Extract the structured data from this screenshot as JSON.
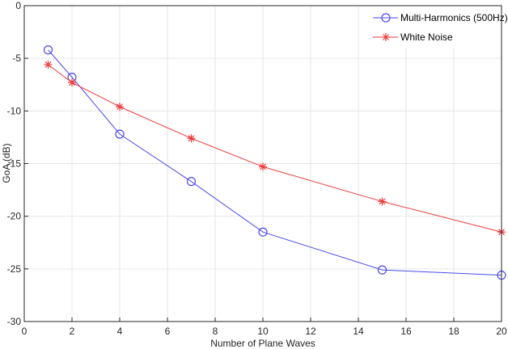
{
  "chart_data": {
    "type": "line",
    "title": "",
    "xlabel": "Number of Plane Waves",
    "ylabel": "GoA",
    "ylabel_sub": "r",
    "ylabel_unit": "(dB)",
    "xlim": [
      0,
      20
    ],
    "ylim": [
      -30,
      0
    ],
    "xticks": [
      0,
      2,
      4,
      6,
      8,
      10,
      12,
      14,
      16,
      18,
      20
    ],
    "yticks": [
      0,
      -5,
      -10,
      -15,
      -20,
      -25,
      -30
    ],
    "grid": true,
    "legend_position": "top-right",
    "series": [
      {
        "name": "Multi-Harmonics (500Hz)",
        "color": "#4a4aec",
        "marker": "circle",
        "x": [
          1,
          2,
          4,
          7,
          10,
          15,
          20
        ],
        "y": [
          -4.2,
          -6.8,
          -12.2,
          -16.7,
          -21.5,
          -25.1,
          -25.6
        ]
      },
      {
        "name": "White Noise",
        "color": "#ee3b3b",
        "marker": "asterisk",
        "x": [
          1,
          2,
          4,
          7,
          10,
          15,
          20
        ],
        "y": [
          -5.6,
          -7.3,
          -9.6,
          -12.6,
          -15.3,
          -18.6,
          -21.5
        ]
      }
    ]
  }
}
